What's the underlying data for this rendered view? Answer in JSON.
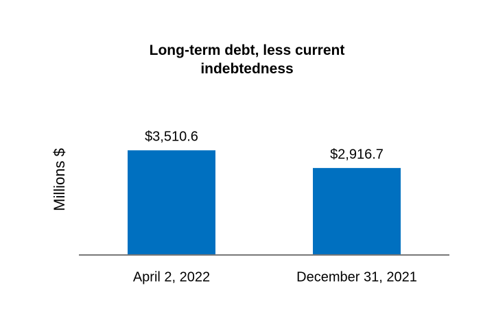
{
  "chart_data": {
    "type": "bar",
    "title": "Long-term debt, less current indebtedness",
    "y_label": "Millions $",
    "categories": [
      "April 2, 2022",
      "December 31, 2021"
    ],
    "values": [
      3510.6,
      2916.7
    ],
    "value_labels": [
      "$3,510.6",
      "$2,916.7"
    ],
    "color": "#0070c0",
    "ylim": [
      0,
      4000
    ]
  }
}
